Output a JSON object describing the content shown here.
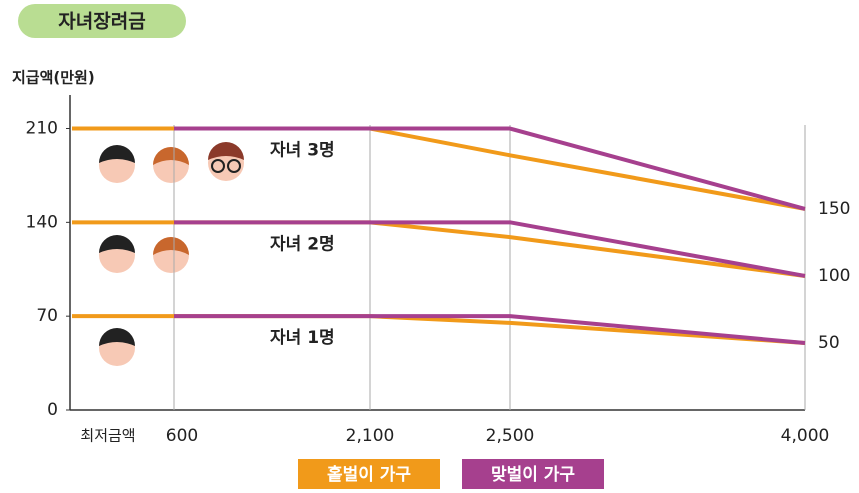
{
  "chart_data": {
    "type": "line",
    "title": "자녀장려금",
    "y_label": "지급액(만원)",
    "categories": [
      "최저금액",
      "600",
      "2,100",
      "2,500",
      "4,000"
    ],
    "ylim": [
      0,
      235
    ],
    "yticks": [
      0,
      70,
      140,
      210
    ],
    "y2lim": [
      0,
      235
    ],
    "y2ticks": [
      50,
      100,
      150
    ],
    "series": [
      {
        "name": "홑벌이 가구",
        "color": "#f19a1a"
      },
      {
        "name": "맞벌이 가구",
        "color": "#a6408e"
      }
    ],
    "groups": [
      {
        "label": "자녀 3명",
        "values": [
          [
            210,
            210,
            210,
            190,
            150
          ],
          [
            null,
            210,
            210,
            210,
            150
          ]
        ]
      },
      {
        "label": "자녀 2명",
        "values": [
          [
            140,
            140,
            140,
            129,
            100
          ],
          [
            null,
            140,
            140,
            140,
            100
          ]
        ]
      },
      {
        "label": "자녀 1명",
        "values": [
          [
            70,
            70,
            70,
            65,
            50
          ],
          [
            null,
            70,
            70,
            70,
            50
          ]
        ]
      }
    ]
  }
}
